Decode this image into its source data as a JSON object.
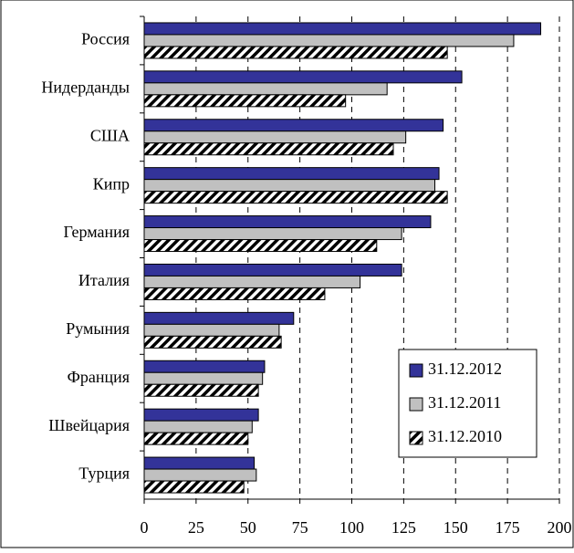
{
  "chart_data": {
    "type": "barh",
    "categories": [
      "Россия",
      "Нидерданды",
      "США",
      "Кипр",
      "Германия",
      "Италия",
      "Румыния",
      "Франция",
      "Швейцария",
      "Турция"
    ],
    "series": [
      {
        "name": "31.12.2012",
        "color": "#333399",
        "values": [
          191,
          153,
          144,
          142,
          138,
          124,
          72,
          58,
          55,
          53
        ]
      },
      {
        "name": "31.12.2011",
        "color": "#c0c0c0",
        "values": [
          178,
          117,
          126,
          140,
          124,
          104,
          65,
          57,
          52,
          54
        ]
      },
      {
        "name": "31.12.2010",
        "color": "#ffffff",
        "pattern": "diagonal-hatch",
        "values": [
          146,
          97,
          120,
          146,
          112,
          87,
          66,
          55,
          50,
          48
        ]
      }
    ],
    "xlim": [
      0,
      200
    ],
    "xticks": [
      0,
      25,
      50,
      75,
      100,
      125,
      150,
      175,
      200
    ],
    "grid": true,
    "legend": "lower right"
  }
}
